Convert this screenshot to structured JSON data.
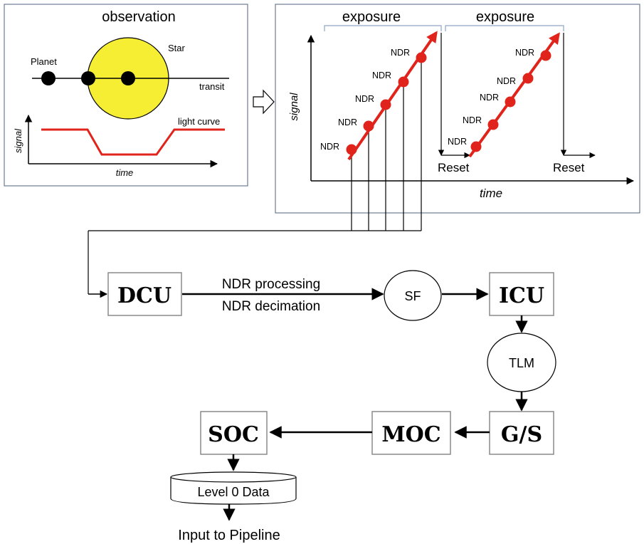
{
  "observation": {
    "title": "observation",
    "planet_label": "Planet",
    "star_label": "Star",
    "transit_label": "transit",
    "light_curve_label": "light curve",
    "y_label": "signal",
    "x_label": "time"
  },
  "exposure": {
    "labels": [
      "exposure",
      "exposure"
    ],
    "y_label": "signal",
    "x_label": "time",
    "ndr_label": "NDR",
    "reset_label": "Reset"
  },
  "pipeline": {
    "dcu": "DCU",
    "icu": "ICU",
    "gs": "G/S",
    "moc": "MOC",
    "soc": "SOC",
    "sf": "SF",
    "tlm": "TLM",
    "processing_line1": "NDR processing",
    "processing_line2": "NDR decimation",
    "level0": "Level 0 Data",
    "output": "Input to Pipeline"
  },
  "colors": {
    "red": "#e0241b",
    "star_fill": "#f6ee33",
    "panel_border": "#6b7b93",
    "bracket": "#8fa3c8"
  }
}
